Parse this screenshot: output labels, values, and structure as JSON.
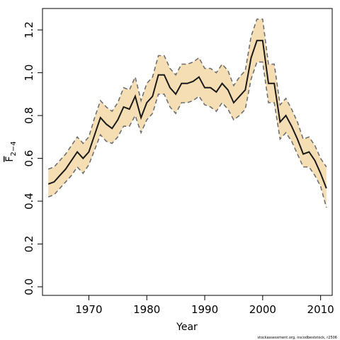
{
  "chart_data": {
    "type": "line",
    "xlabel": "Year",
    "ylabel_main": "F",
    "ylabel_sub": "2−4",
    "xlim": [
      1962,
      2012
    ],
    "ylim": [
      -0.04,
      1.3
    ],
    "xticks": [
      1970,
      1980,
      1990,
      2000,
      2010
    ],
    "yticks": [
      0.0,
      0.2,
      0.4,
      0.6,
      0.8,
      1.0,
      1.2
    ],
    "ytick_labels": [
      "0.0",
      "0.2",
      "0.4",
      "0.6",
      "0.8",
      "1.0",
      "1.2"
    ],
    "grid": false,
    "x": [
      1963,
      1964,
      1965,
      1966,
      1967,
      1968,
      1969,
      1970,
      1971,
      1972,
      1973,
      1974,
      1975,
      1976,
      1977,
      1978,
      1979,
      1980,
      1981,
      1982,
      1983,
      1984,
      1985,
      1986,
      1987,
      1988,
      1989,
      1990,
      1991,
      1992,
      1993,
      1994,
      1995,
      1996,
      1997,
      1998,
      1999,
      2000,
      2001,
      2002,
      2003,
      2004,
      2005,
      2006,
      2007,
      2008,
      2009,
      2010,
      2011
    ],
    "series": [
      {
        "values": [
          0.48,
          0.49,
          0.52,
          0.55,
          0.59,
          0.63,
          0.6,
          0.63,
          0.71,
          0.79,
          0.76,
          0.74,
          0.78,
          0.84,
          0.83,
          0.89,
          0.79,
          0.86,
          0.89,
          0.99,
          0.99,
          0.93,
          0.9,
          0.95,
          0.95,
          0.96,
          0.98,
          0.93,
          0.93,
          0.91,
          0.95,
          0.92,
          0.86,
          0.89,
          0.92,
          1.07,
          1.15,
          1.15,
          0.95,
          0.95,
          0.77,
          0.8,
          0.75,
          0.69,
          0.62,
          0.63,
          0.59,
          0.53,
          0.46
        ],
        "lower": [
          0.42,
          0.43,
          0.46,
          0.49,
          0.52,
          0.56,
          0.53,
          0.57,
          0.64,
          0.71,
          0.68,
          0.67,
          0.7,
          0.75,
          0.75,
          0.8,
          0.72,
          0.78,
          0.81,
          0.9,
          0.9,
          0.84,
          0.81,
          0.86,
          0.86,
          0.87,
          0.89,
          0.85,
          0.84,
          0.82,
          0.86,
          0.83,
          0.78,
          0.8,
          0.83,
          0.97,
          1.05,
          1.05,
          0.86,
          0.86,
          0.69,
          0.72,
          0.68,
          0.62,
          0.56,
          0.56,
          0.52,
          0.47,
          0.37
        ],
        "upper": [
          0.55,
          0.56,
          0.59,
          0.62,
          0.66,
          0.7,
          0.67,
          0.7,
          0.79,
          0.87,
          0.84,
          0.82,
          0.86,
          0.93,
          0.92,
          0.98,
          0.87,
          0.95,
          0.98,
          1.08,
          1.08,
          1.02,
          0.99,
          1.04,
          1.04,
          1.05,
          1.07,
          1.02,
          1.02,
          1.0,
          1.04,
          1.01,
          0.94,
          0.98,
          1.01,
          1.17,
          1.25,
          1.25,
          1.04,
          1.04,
          0.85,
          0.88,
          0.83,
          0.77,
          0.69,
          0.7,
          0.66,
          0.6,
          0.56
        ]
      }
    ],
    "colors": {
      "band": "#f5deb3",
      "line": "#1a1a1a",
      "band_edge": "#707070",
      "frame": "#000000"
    }
  },
  "credit": "stockassessment.org, nscodbeststock, r2506"
}
